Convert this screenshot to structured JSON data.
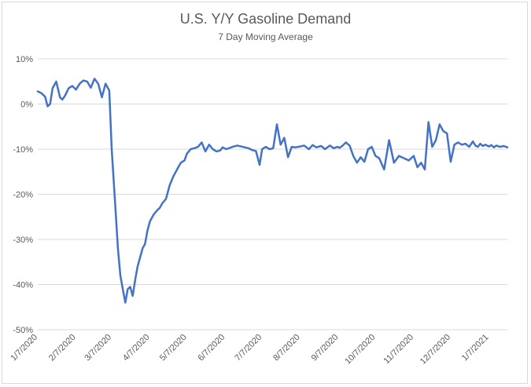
{
  "chart_data": {
    "type": "line",
    "title": "U.S. Y/Y Gasoline Demand",
    "subtitle": "7 Day Moving Average",
    "xlabel": "",
    "ylabel": "",
    "ylim": [
      -50,
      10
    ],
    "y_ticks": [
      "10%",
      "0%",
      "-10%",
      "-20%",
      "-30%",
      "-40%",
      "-50%"
    ],
    "y_tick_values": [
      10,
      0,
      -10,
      -20,
      -30,
      -40,
      -50
    ],
    "x_range": [
      "2020-01-07",
      "2021-01-22"
    ],
    "x_ticks": [
      "1/7/2020",
      "2/7/2020",
      "3/7/2020",
      "4/7/2020",
      "5/7/2020",
      "6/7/2020",
      "7/7/2020",
      "8/7/2020",
      "9/7/2020",
      "10/7/2020",
      "11/7/2020",
      "12/7/2020",
      "1/7/2021"
    ],
    "x_tick_dates": [
      "2020-01-07",
      "2020-02-07",
      "2020-03-07",
      "2020-04-07",
      "2020-05-07",
      "2020-06-07",
      "2020-07-07",
      "2020-08-07",
      "2020-09-07",
      "2020-10-07",
      "2020-11-07",
      "2020-12-07",
      "2021-01-07"
    ],
    "grid": "horizontal",
    "legend": "none",
    "colors": {
      "series": "#4472c4",
      "grid": "#d9d9d9",
      "text": "#595959"
    },
    "series": [
      {
        "x": [
          "2020-01-07",
          "2020-01-10",
          "2020-01-13",
          "2020-01-15",
          "2020-01-17",
          "2020-01-19",
          "2020-01-22",
          "2020-01-25",
          "2020-01-27",
          "2020-01-29",
          "2020-02-01",
          "2020-02-04",
          "2020-02-07",
          "2020-02-10",
          "2020-02-13",
          "2020-02-16",
          "2020-02-19",
          "2020-02-22",
          "2020-02-25",
          "2020-02-28",
          "2020-03-02",
          "2020-03-05",
          "2020-03-07",
          "2020-03-10",
          "2020-03-12",
          "2020-03-14",
          "2020-03-16",
          "2020-03-18",
          "2020-03-20",
          "2020-03-22",
          "2020-03-24",
          "2020-03-26",
          "2020-03-28",
          "2020-03-30",
          "2020-04-01",
          "2020-04-03",
          "2020-04-05",
          "2020-04-07",
          "2020-04-10",
          "2020-04-13",
          "2020-04-15",
          "2020-04-17",
          "2020-04-20",
          "2020-04-23",
          "2020-04-26",
          "2020-04-29",
          "2020-05-02",
          "2020-05-05",
          "2020-05-07",
          "2020-05-10",
          "2020-05-13",
          "2020-05-16",
          "2020-05-19",
          "2020-05-22",
          "2020-05-25",
          "2020-05-28",
          "2020-05-31",
          "2020-06-03",
          "2020-06-05",
          "2020-06-08",
          "2020-06-11",
          "2020-06-14",
          "2020-06-17",
          "2020-06-20",
          "2020-06-23",
          "2020-06-26",
          "2020-06-29",
          "2020-07-02",
          "2020-07-05",
          "2020-07-07",
          "2020-07-10",
          "2020-07-13",
          "2020-07-16",
          "2020-07-19",
          "2020-07-22",
          "2020-07-25",
          "2020-07-28",
          "2020-07-31",
          "2020-08-03",
          "2020-08-07",
          "2020-08-10",
          "2020-08-14",
          "2020-08-17",
          "2020-08-20",
          "2020-08-24",
          "2020-08-27",
          "2020-08-31",
          "2020-09-03",
          "2020-09-06",
          "2020-09-08",
          "2020-09-10",
          "2020-09-13",
          "2020-09-16",
          "2020-09-19",
          "2020-09-22",
          "2020-09-25",
          "2020-09-28",
          "2020-10-01",
          "2020-10-04",
          "2020-10-07",
          "2020-10-10",
          "2020-10-14",
          "2020-10-18",
          "2020-10-22",
          "2020-10-26",
          "2020-10-30",
          "2020-11-03",
          "2020-11-07",
          "2020-11-10",
          "2020-11-13",
          "2020-11-16",
          "2020-11-19",
          "2020-11-22",
          "2020-11-25",
          "2020-11-28",
          "2020-12-01",
          "2020-12-04",
          "2020-12-07",
          "2020-12-10",
          "2020-12-13",
          "2020-12-16",
          "2020-12-19",
          "2020-12-22",
          "2020-12-25",
          "2020-12-27",
          "2020-12-29",
          "2020-12-31",
          "2021-01-02",
          "2021-01-04",
          "2021-01-07",
          "2021-01-09",
          "2021-01-11",
          "2021-01-13",
          "2021-01-16",
          "2021-01-19",
          "2021-01-22"
        ],
        "y": [
          2.8,
          2.4,
          1.6,
          -0.5,
          0,
          3.5,
          5,
          1.5,
          1,
          1.8,
          3.5,
          4,
          3.2,
          4.5,
          5.2,
          5,
          3.6,
          5.6,
          4.5,
          1.5,
          4.5,
          3,
          -10,
          -23,
          -32,
          -38,
          -41,
          -44,
          -41,
          -40.5,
          -42.5,
          -39,
          -36,
          -34,
          -32,
          -31,
          -28,
          -26,
          -24.5,
          -23.5,
          -23,
          -22,
          -21,
          -18,
          -16,
          -14.5,
          -13,
          -12.5,
          -11,
          -10,
          -9.8,
          -9.5,
          -8.5,
          -10.5,
          -9,
          -10,
          -10.5,
          -10.3,
          -9.6,
          -10,
          -9.7,
          -9.4,
          -9.2,
          -9.4,
          -9.6,
          -9.8,
          -10.2,
          -10.4,
          -13.5,
          -10,
          -9.5,
          -10,
          -9.8,
          -4.5,
          -9,
          -7.5,
          -11.8,
          -9.5,
          -9.6,
          -9.4,
          -9.2,
          -10,
          -9.1,
          -9.6,
          -9.3,
          -10,
          -9.2,
          -9.8,
          -9.5,
          -9.7,
          -9.3,
          -8.5,
          -9.2,
          -11.5,
          -13,
          -11.8,
          -12.8,
          -10,
          -9.5,
          -11.5,
          -12,
          -14.5,
          -8,
          -13,
          -11.5,
          -12,
          -12.5,
          -11.5,
          -14,
          -13,
          -14.5,
          -4,
          -9.5,
          -8,
          -4.5,
          -6,
          -6.5,
          -12.8,
          -9,
          -8.5,
          -9,
          -8.8,
          -9.5,
          -8.3,
          -9.2,
          -9.5,
          -8.8,
          -9.3,
          -9,
          -9.4,
          -9.1,
          -9.6,
          -9.2,
          -9.5,
          -9.3,
          -9.6
        ]
      }
    ]
  }
}
